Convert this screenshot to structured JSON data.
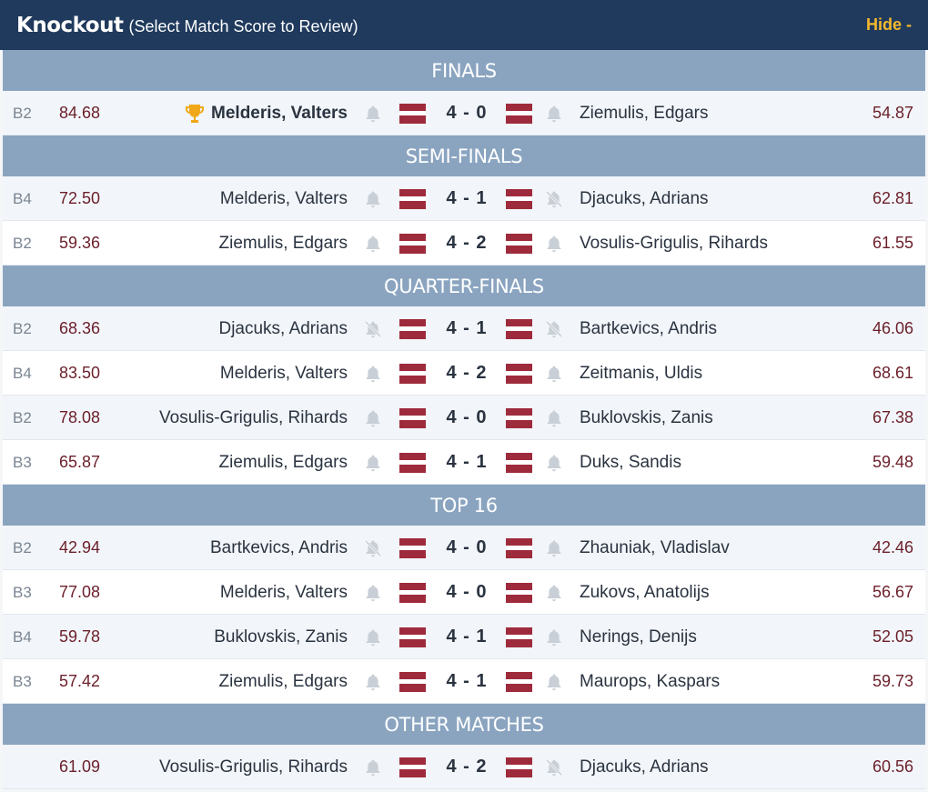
{
  "header": {
    "title": "Knockout",
    "subtitle": "(Select Match Score to Review)",
    "hide_label": "Hide -"
  },
  "colors": {
    "header_bg": "#1f3a5c",
    "section_bg": "#8aa4c0",
    "hide_accent": "#f5b82e",
    "average_text": "#6b1f2a",
    "flag_red": "#9e2b3c"
  },
  "sections": [
    {
      "title": "FINALS",
      "matches": [
        {
          "round": "B2",
          "avg1": "84.68",
          "player1": "Melderis, Valters",
          "winner": true,
          "bell1": "bell",
          "score": "4 - 0",
          "bell2": "bell",
          "player2": "Ziemulis, Edgars",
          "avg2": "54.87"
        }
      ]
    },
    {
      "title": "SEMI-FINALS",
      "matches": [
        {
          "round": "B4",
          "avg1": "72.50",
          "player1": "Melderis, Valters",
          "bell1": "bell",
          "score": "4 - 1",
          "bell2": "bell-muted",
          "player2": "Djacuks, Adrians",
          "avg2": "62.81"
        },
        {
          "round": "B2",
          "avg1": "59.36",
          "player1": "Ziemulis, Edgars",
          "bell1": "bell",
          "score": "4 - 2",
          "bell2": "bell",
          "player2": "Vosulis-Grigulis, Rihards",
          "avg2": "61.55"
        }
      ]
    },
    {
      "title": "QUARTER-FINALS",
      "matches": [
        {
          "round": "B2",
          "avg1": "68.36",
          "player1": "Djacuks, Adrians",
          "bell1": "bell-muted",
          "score": "4 - 1",
          "bell2": "bell-muted",
          "player2": "Bartkevics, Andris",
          "avg2": "46.06"
        },
        {
          "round": "B4",
          "avg1": "83.50",
          "player1": "Melderis, Valters",
          "bell1": "bell",
          "score": "4 - 2",
          "bell2": "bell",
          "player2": "Zeitmanis, Uldis",
          "avg2": "68.61"
        },
        {
          "round": "B2",
          "avg1": "78.08",
          "player1": "Vosulis-Grigulis, Rihards",
          "bell1": "bell",
          "score": "4 - 0",
          "bell2": "bell",
          "player2": "Buklovskis, Zanis",
          "avg2": "67.38"
        },
        {
          "round": "B3",
          "avg1": "65.87",
          "player1": "Ziemulis, Edgars",
          "bell1": "bell",
          "score": "4 - 1",
          "bell2": "bell",
          "player2": "Duks, Sandis",
          "avg2": "59.48"
        }
      ]
    },
    {
      "title": "TOP 16",
      "matches": [
        {
          "round": "B2",
          "avg1": "42.94",
          "player1": "Bartkevics, Andris",
          "bell1": "bell-muted",
          "score": "4 - 0",
          "bell2": "bell",
          "player2": "Zhauniak, Vladislav",
          "avg2": "42.46"
        },
        {
          "round": "B3",
          "avg1": "77.08",
          "player1": "Melderis, Valters",
          "bell1": "bell",
          "score": "4 - 0",
          "bell2": "bell",
          "player2": "Zukovs, Anatolijs",
          "avg2": "56.67"
        },
        {
          "round": "B4",
          "avg1": "59.78",
          "player1": "Buklovskis, Zanis",
          "bell1": "bell",
          "score": "4 - 1",
          "bell2": "bell",
          "player2": "Nerings, Denijs",
          "avg2": "52.05"
        },
        {
          "round": "B3",
          "avg1": "57.42",
          "player1": "Ziemulis, Edgars",
          "bell1": "bell",
          "score": "4 - 1",
          "bell2": "bell",
          "player2": "Maurops, Kaspars",
          "avg2": "59.73"
        }
      ]
    },
    {
      "title": "OTHER MATCHES",
      "matches": [
        {
          "round": "",
          "avg1": "61.09",
          "player1": "Vosulis-Grigulis, Rihards",
          "bell1": "bell",
          "score": "4 - 2",
          "bell2": "bell-muted",
          "player2": "Djacuks, Adrians",
          "avg2": "60.56"
        }
      ]
    }
  ]
}
